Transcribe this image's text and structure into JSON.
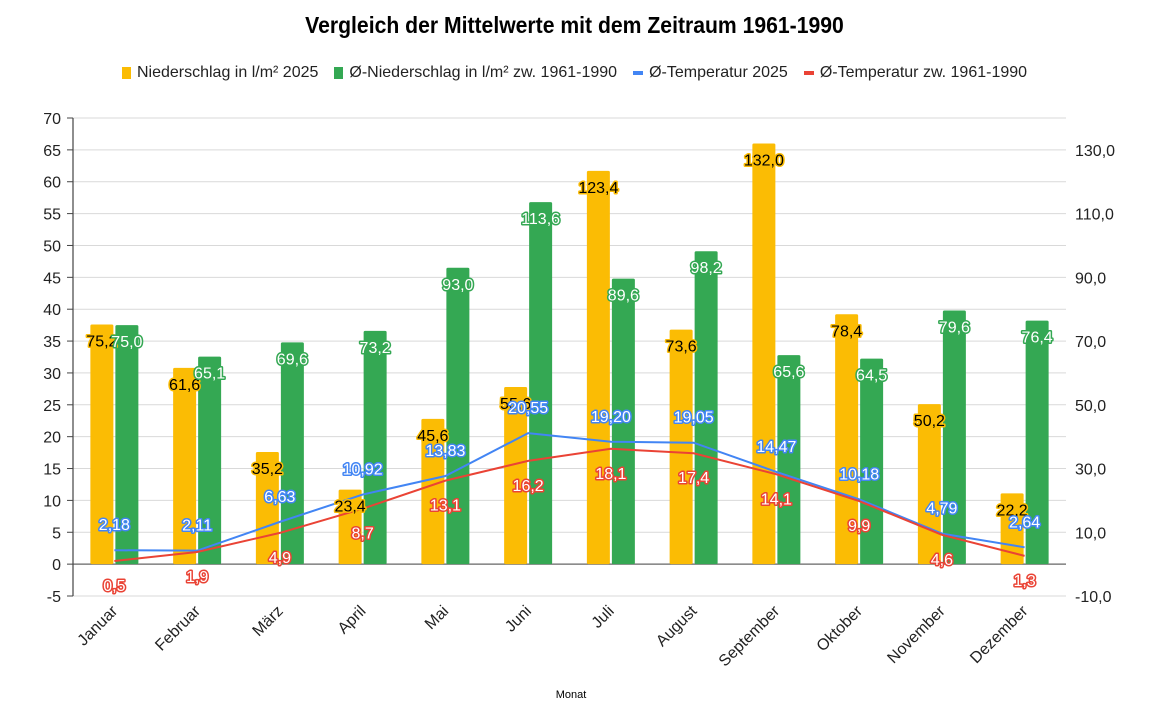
{
  "chart_data": {
    "type": "bar",
    "title": "Vergleich der Mittelwerte mit dem Zeitraum 1961-1990",
    "xlabel": "Monat",
    "ylabel_left": "",
    "ylabel_right": "",
    "categories": [
      "Januar",
      "Februar",
      "März",
      "April",
      "Mai",
      "Juni",
      "Juli",
      "August",
      "September",
      "Oktober",
      "November",
      "Dezember"
    ],
    "left_axis": {
      "range": [
        -5,
        70
      ],
      "ticks": [
        "70",
        "65",
        "60",
        "55",
        "50",
        "45",
        "40",
        "35",
        "30",
        "25",
        "20",
        "15",
        "10",
        "5",
        "0",
        "-5"
      ],
      "tick_values": [
        70,
        65,
        60,
        55,
        50,
        45,
        40,
        35,
        30,
        25,
        20,
        15,
        10,
        5,
        0,
        -5
      ]
    },
    "right_axis": {
      "range": [
        -10,
        140
      ],
      "ticks": [
        "130,0",
        "110,0",
        "90,0",
        "70,0",
        "50,0",
        "30,0",
        "10,0",
        "-10,0"
      ],
      "tick_values": [
        130,
        110,
        90,
        70,
        50,
        30,
        10,
        -10
      ]
    },
    "grid": true,
    "legend_position": "top",
    "series": [
      {
        "name": "Niederschlag in l/m² 2025",
        "kind": "bar",
        "axis": "right",
        "color": "#FBBC04",
        "values": [
          75.2,
          61.6,
          35.2,
          23.4,
          45.6,
          55.6,
          123.4,
          73.6,
          132.0,
          78.4,
          50.2,
          22.2
        ],
        "labels": [
          "75,2",
          "61,6",
          "35,2",
          "23,4",
          "45,6",
          "55,6",
          "123,4",
          "73,6",
          "132,0",
          "78,4",
          "50,2",
          "22,2"
        ]
      },
      {
        "name": "Ø-Niederschlag in l/m² zw. 1961-1990",
        "kind": "bar",
        "axis": "right",
        "color": "#34A853",
        "values": [
          75.0,
          65.1,
          69.6,
          73.2,
          93.0,
          113.6,
          89.6,
          98.2,
          65.6,
          64.5,
          79.6,
          76.4
        ],
        "labels": [
          "75,0",
          "65,1",
          "69,6",
          "73,2",
          "93,0",
          "113,6",
          "89,6",
          "98,2",
          "65,6",
          "64,5",
          "79,6",
          "76,4"
        ]
      },
      {
        "name": "Ø-Temperatur 2025",
        "kind": "line",
        "axis": "left",
        "color": "#4285F4",
        "values": [
          2.18,
          2.11,
          6.63,
          10.92,
          13.83,
          20.55,
          19.2,
          19.05,
          14.47,
          10.18,
          4.79,
          2.64
        ],
        "labels": [
          "2,18",
          "2,11",
          "6,63",
          "10,92",
          "13,83",
          "20,55",
          "19,20",
          "19,05",
          "14,47",
          "10,18",
          "4,79",
          "2,64"
        ]
      },
      {
        "name": "Ø-Temperatur zw. 1961-1990",
        "kind": "line",
        "axis": "left",
        "color": "#EA4335",
        "values": [
          0.5,
          1.9,
          4.9,
          8.7,
          13.1,
          16.2,
          18.1,
          17.4,
          14.1,
          9.9,
          4.6,
          1.3
        ],
        "labels": [
          "0,5",
          "1,9",
          "4,9",
          "8,7",
          "13,1",
          "16,2",
          "18,1",
          "17,4",
          "14,1",
          "9,9",
          "4,6",
          "1,3"
        ]
      }
    ]
  }
}
